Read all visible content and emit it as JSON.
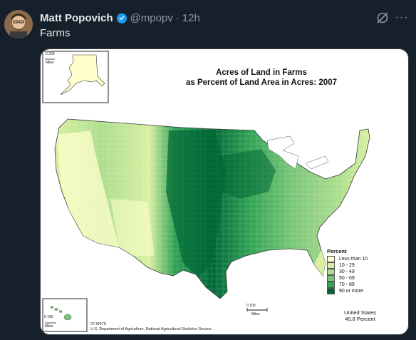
{
  "tweet": {
    "author_name": "Matt Popovich",
    "handle": "@mpopv",
    "separator": "·",
    "time": "12h",
    "text": "Farms",
    "more_label": "···"
  },
  "map": {
    "title_line1": "Acres of Land in Farms",
    "title_line2": "as Percent of Land Area in Acres:  2007",
    "legend_title": "Percent",
    "legend": [
      {
        "label": "Less than 10",
        "color": "#ffffcc"
      },
      {
        "label": "10 - 29",
        "color": "#d9f0a3"
      },
      {
        "label": "30 - 49",
        "color": "#addd8e"
      },
      {
        "label": "50 - 69",
        "color": "#78c679"
      },
      {
        "label": "70 - 89",
        "color": "#31a354"
      },
      {
        "label": "90 or more",
        "color": "#006837"
      }
    ],
    "us_total_line1": "United States",
    "us_total_line2": "40.8 Percent",
    "map_id": "07-M079",
    "source": "U.S. Department of Agriculture, National Agricultural Statistics Service",
    "alaska_scale": "0  200",
    "alaska_scale_unit": "Miles",
    "hawaii_scale": "0  100",
    "hawaii_scale_unit": "Miles",
    "main_scale": "0      100",
    "main_scale_unit": "Miles"
  },
  "colors": {
    "background": "#15202b",
    "verified": "#1d9bf0",
    "secondary_text": "#8b98a5"
  }
}
